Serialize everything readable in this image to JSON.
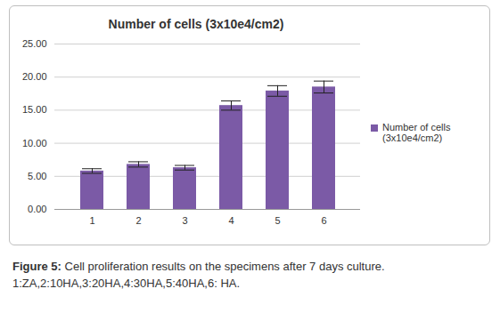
{
  "chart_data": {
    "type": "bar",
    "title": "Number of cells (3x10e4/cm2)",
    "caption_label": "Figure 5:",
    "caption": "Cell proliferation results on the specimens after 7 days culture. 1:ZA,2:10HA,3:20HA,4:30HA,5:40HA,6: HA.",
    "categories": [
      "1",
      "2",
      "3",
      "4",
      "5",
      "6"
    ],
    "series": [
      {
        "name": "Number of cells (3x10e4/cm2)",
        "color": "#7b5aa6",
        "values": [
          5.8,
          6.8,
          6.3,
          15.7,
          17.9,
          18.5
        ],
        "errors": [
          0.35,
          0.4,
          0.35,
          0.7,
          0.8,
          0.9
        ]
      }
    ],
    "ylim": [
      0,
      25
    ],
    "yticks": [
      {
        "value": 0,
        "label": "0.00"
      },
      {
        "value": 5,
        "label": "5.00"
      },
      {
        "value": 10,
        "label": "10.00"
      },
      {
        "value": 15,
        "label": "15.00"
      },
      {
        "value": 20,
        "label": "20.00"
      },
      {
        "value": 25,
        "label": "25.00"
      }
    ],
    "grid": true,
    "legend": "right"
  }
}
